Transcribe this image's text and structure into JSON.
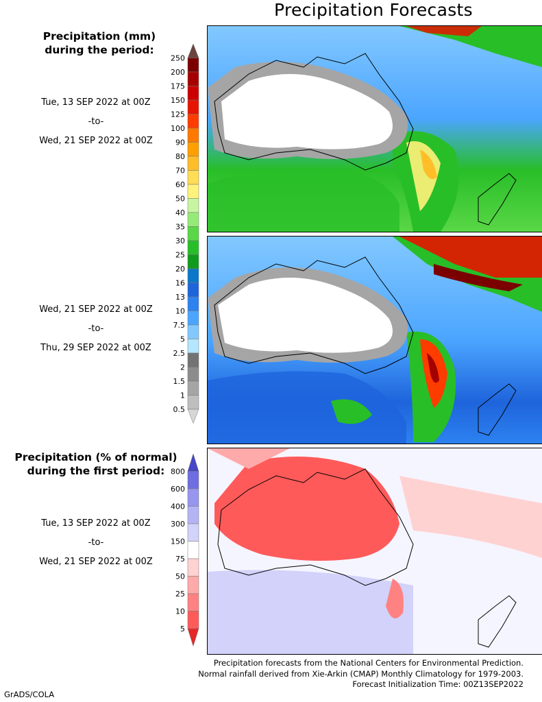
{
  "title": "Precipitation Forecasts",
  "panel1": {
    "header_line1": "Precipitation (mm)",
    "header_line2": "during the period:",
    "period_start": "Tue, 13 SEP 2022 at 00Z",
    "period_sep": "-to-",
    "period_end": "Wed, 21 SEP 2022 at 00Z"
  },
  "panel2": {
    "period_start": "Wed, 21 SEP 2022 at 00Z",
    "period_sep": "-to-",
    "period_end": "Thu, 29 SEP 2022 at 00Z"
  },
  "panel3": {
    "header_line1": "Precipitation (% of normal)",
    "header_line2": "during the first period:",
    "period_start": "Tue, 13 SEP 2022 at 00Z",
    "period_sep": "-to-",
    "period_end": "Wed, 21 SEP 2022 at 00Z"
  },
  "mm_scale": {
    "labels": [
      "250",
      "200",
      "175",
      "150",
      "125",
      "100",
      "90",
      "80",
      "70",
      "60",
      "50",
      "40",
      "35",
      "30",
      "25",
      "20",
      "16",
      "13",
      "10",
      "7.5",
      "5",
      "2.5",
      "2",
      "1.5",
      "1",
      "0.5"
    ],
    "colors": [
      "#6b4441",
      "#7b0000",
      "#a50000",
      "#cc0000",
      "#e61400",
      "#ff3c00",
      "#ff7800",
      "#ff9f00",
      "#ffbe28",
      "#ffdd55",
      "#fff27a",
      "#c8f5a0",
      "#96eb78",
      "#5ad746",
      "#28be28",
      "#119b1e",
      "#0a78c8",
      "#1e64dc",
      "#2d82f0",
      "#4ba5ff",
      "#82c8ff",
      "#b4e6ff",
      "#737373",
      "#8c8c8c",
      "#a5a5a5",
      "#bebebe",
      "#d7d7d7"
    ]
  },
  "pct_scale": {
    "labels": [
      "800",
      "600",
      "400",
      "300",
      "150",
      "75",
      "50",
      "25",
      "10",
      "5"
    ],
    "colors": [
      "#4646c8",
      "#6e6ee1",
      "#9696ee",
      "#b4b4f5",
      "#d2d2fa",
      "#ffffff",
      "#ffd2d2",
      "#ffaaaa",
      "#ff8282",
      "#ff5a5a",
      "#e62828"
    ]
  },
  "footer": {
    "line1": "Precipitation forecasts from the National Centers for Environmental Prediction.",
    "line2": "Normal rainfall derived from Xie-Arkin (CMAP) Monthly Climatology for 1979-2003.",
    "line3": "Forecast Initialization Time: 00Z13SEP2022"
  },
  "credit": "GrADS/COLA"
}
